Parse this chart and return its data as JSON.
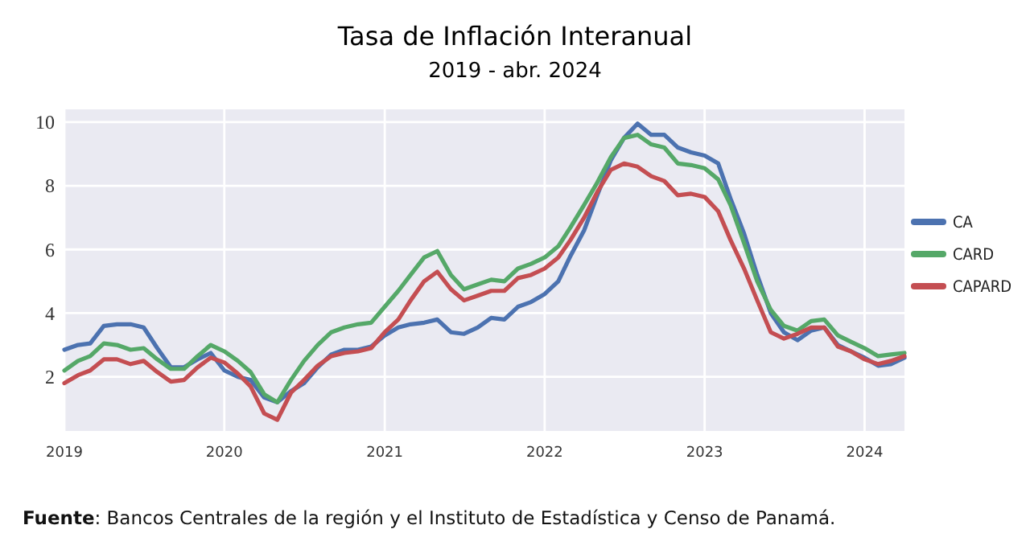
{
  "chart_data": {
    "type": "line",
    "title": "Tasa de Inflación Interanual",
    "subtitle": "2019 - abr. 2024",
    "x": [
      "2019-01",
      "2019-02",
      "2019-03",
      "2019-04",
      "2019-05",
      "2019-06",
      "2019-07",
      "2019-08",
      "2019-09",
      "2019-10",
      "2019-11",
      "2019-12",
      "2020-01",
      "2020-02",
      "2020-03",
      "2020-04",
      "2020-05",
      "2020-06",
      "2020-07",
      "2020-08",
      "2020-09",
      "2020-10",
      "2020-11",
      "2020-12",
      "2021-01",
      "2021-02",
      "2021-03",
      "2021-04",
      "2021-05",
      "2021-06",
      "2021-07",
      "2021-08",
      "2021-09",
      "2021-10",
      "2021-11",
      "2021-12",
      "2022-01",
      "2022-02",
      "2022-03",
      "2022-04",
      "2022-05",
      "2022-06",
      "2022-07",
      "2022-08",
      "2022-09",
      "2022-10",
      "2022-11",
      "2022-12",
      "2023-01",
      "2023-02",
      "2023-03",
      "2023-04",
      "2023-05",
      "2023-06",
      "2023-07",
      "2023-08",
      "2023-09",
      "2023-10",
      "2023-11",
      "2023-12",
      "2024-01",
      "2024-02",
      "2024-03",
      "2024-04"
    ],
    "series": [
      {
        "name": "CA",
        "color": "#4c72b0",
        "values": [
          2.85,
          3.0,
          3.05,
          3.6,
          3.65,
          3.65,
          3.55,
          2.9,
          2.3,
          2.3,
          2.55,
          2.75,
          2.2,
          2.0,
          1.9,
          1.35,
          1.2,
          1.55,
          1.8,
          2.3,
          2.7,
          2.85,
          2.85,
          2.95,
          3.3,
          3.55,
          3.65,
          3.7,
          3.8,
          3.4,
          3.35,
          3.55,
          3.85,
          3.8,
          4.2,
          4.35,
          4.6,
          5.0,
          5.8,
          6.6,
          7.7,
          8.8,
          9.5,
          9.95,
          9.6,
          9.6,
          9.2,
          9.05,
          8.95,
          8.7,
          7.6,
          6.5,
          5.2,
          4.0,
          3.4,
          3.15,
          3.45,
          3.55,
          3.0,
          2.8,
          2.6,
          2.35,
          2.4,
          2.6
        ]
      },
      {
        "name": "CARD",
        "color": "#55a868",
        "values": [
          2.2,
          2.5,
          2.65,
          3.05,
          3.0,
          2.85,
          2.9,
          2.55,
          2.25,
          2.25,
          2.65,
          3.0,
          2.8,
          2.5,
          2.15,
          1.45,
          1.2,
          1.9,
          2.5,
          3.0,
          3.4,
          3.55,
          3.65,
          3.7,
          4.2,
          4.7,
          5.2,
          5.75,
          5.95,
          5.2,
          4.75,
          4.9,
          5.05,
          5.0,
          5.4,
          5.55,
          5.75,
          6.1,
          6.7,
          7.4,
          8.1,
          8.9,
          9.5,
          9.6,
          9.3,
          9.2,
          8.7,
          8.65,
          8.55,
          8.2,
          7.4,
          6.2,
          5.0,
          4.1,
          3.6,
          3.45,
          3.75,
          3.8,
          3.3,
          3.1,
          2.9,
          2.65,
          2.7,
          2.75
        ]
      },
      {
        "name": "CAPARD",
        "color": "#c44e52",
        "values": [
          1.8,
          2.05,
          2.2,
          2.55,
          2.55,
          2.4,
          2.5,
          2.15,
          1.85,
          1.9,
          2.3,
          2.6,
          2.45,
          2.1,
          1.7,
          0.85,
          0.65,
          1.5,
          1.9,
          2.35,
          2.65,
          2.75,
          2.8,
          2.9,
          3.4,
          3.8,
          4.4,
          5.0,
          5.3,
          4.75,
          4.4,
          4.55,
          4.7,
          4.7,
          5.1,
          5.2,
          5.4,
          5.75,
          6.3,
          7.0,
          7.8,
          8.5,
          8.7,
          8.6,
          8.3,
          8.15,
          7.7,
          7.75,
          7.65,
          7.2,
          6.3,
          5.4,
          4.4,
          3.4,
          3.2,
          3.35,
          3.55,
          3.55,
          2.95,
          2.8,
          2.55,
          2.4,
          2.5,
          2.65
        ]
      }
    ],
    "xlim": [
      "2019-01",
      "2024-04"
    ],
    "xticks": [
      {
        "value": "2019-01",
        "label": "2019"
      },
      {
        "value": "2020-01",
        "label": "2020"
      },
      {
        "value": "2021-01",
        "label": "2021"
      },
      {
        "value": "2022-01",
        "label": "2022"
      },
      {
        "value": "2023-01",
        "label": "2023"
      },
      {
        "value": "2024-01",
        "label": "2024"
      }
    ],
    "ylim": [
      0.3,
      10.4
    ],
    "yticks": [
      2,
      4,
      6,
      8,
      10
    ],
    "grid": true,
    "legend": "right",
    "annotations": [
      "Fuente: Bancos Centrales de la región y el Instituto de Estadística y Censo de Panamá."
    ]
  }
}
